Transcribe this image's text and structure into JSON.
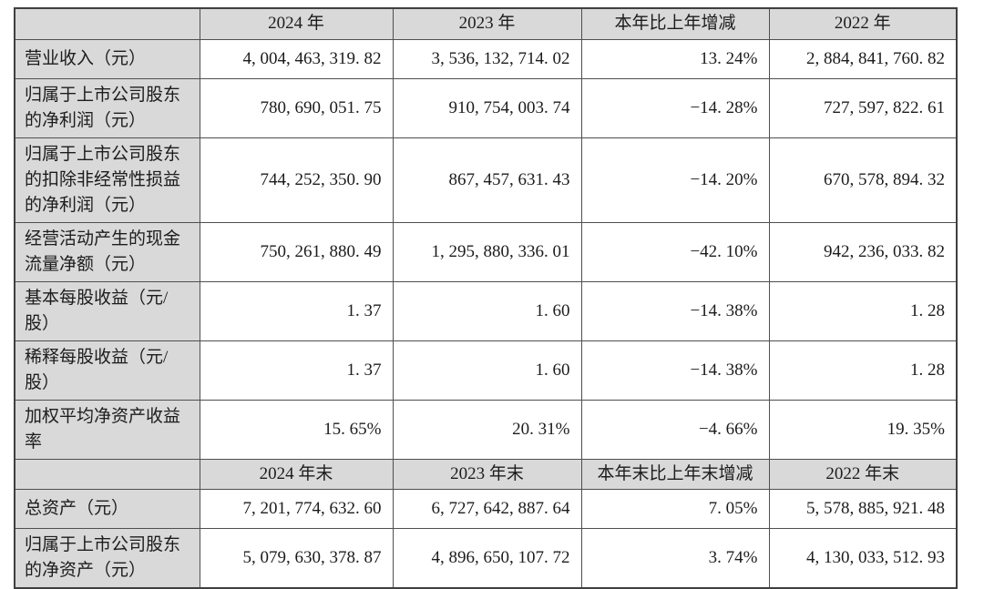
{
  "colors": {
    "header_fill": "#d9d9d9",
    "label_column_fill": "#d9d9d9",
    "value_cell_fill": "#ffffff",
    "grid_border": "#4f4f4f",
    "text": "#1c1c1c"
  },
  "table": {
    "sections": [
      {
        "header": [
          "",
          "2024 年",
          "2023 年",
          "本年比上年增减",
          "2022 年"
        ],
        "rows": [
          {
            "label": "营业收入（元）",
            "values": [
              "4, 004, 463, 319. 82",
              "3, 536, 132, 714. 02",
              "13. 24%",
              "2, 884, 841, 760. 82"
            ]
          },
          {
            "label": "归属于上市公司股东\n的净利润（元）",
            "values": [
              "780, 690, 051. 75",
              "910, 754, 003. 74",
              "−14. 28%",
              "727, 597, 822. 61"
            ]
          },
          {
            "label": "归属于上市公司股东\n的扣除非经常性损益\n的净利润（元）",
            "values": [
              "744, 252, 350. 90",
              "867, 457, 631. 43",
              "−14. 20%",
              "670, 578, 894. 32"
            ]
          },
          {
            "label": "经营活动产生的现金\n流量净额（元）",
            "values": [
              "750, 261, 880. 49",
              "1, 295, 880, 336. 01",
              "−42. 10%",
              "942, 236, 033. 82"
            ]
          },
          {
            "label": "基本每股收益（元/\n股）",
            "values": [
              "1. 37",
              "1. 60",
              "−14. 38%",
              "1. 28"
            ]
          },
          {
            "label": "稀释每股收益（元/\n股）",
            "values": [
              "1. 37",
              "1. 60",
              "−14. 38%",
              "1. 28"
            ]
          },
          {
            "label": "加权平均净资产收益\n率",
            "values": [
              "15. 65%",
              "20. 31%",
              "−4. 66%",
              "19. 35%"
            ]
          }
        ]
      },
      {
        "header": [
          "",
          "2024 年末",
          "2023 年末",
          "本年末比上年末增减",
          "2022 年末"
        ],
        "rows": [
          {
            "label": "总资产（元）",
            "values": [
              "7, 201, 774, 632. 60",
              "6, 727, 642, 887. 64",
              "7. 05%",
              "5, 578, 885, 921. 48"
            ]
          },
          {
            "label": "归属于上市公司股东\n的净资产（元）",
            "values": [
              "5, 079, 630, 378. 87",
              "4, 896, 650, 107. 72",
              "3. 74%",
              "4, 130, 033, 512. 93"
            ]
          }
        ]
      }
    ]
  }
}
